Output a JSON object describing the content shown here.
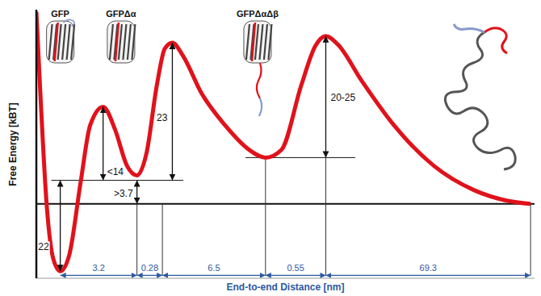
{
  "chart_data": {
    "type": "line",
    "x_label": "End-to-end Distance [nm]",
    "y_label": "Free Energy [kBT]",
    "x": [
      0,
      0.8,
      2.1,
      3.4,
      4.8,
      6.6,
      8.9,
      10.8,
      13.4,
      15.8,
      18.2,
      20.2,
      22.1,
      24.2,
      25.8,
      27.3,
      29.5,
      33.1,
      37.9,
      42.7,
      46.0,
      49.2,
      53.2,
      56.0,
      58.1,
      60.5,
      65.3,
      71.8,
      79.8,
      87.9,
      94.4,
      99.2
    ],
    "values": [
      46.5,
      26.9,
      -0.6,
      -13.3,
      -16.3,
      -12.4,
      5.3,
      19.0,
      23.5,
      18.0,
      9.2,
      6.9,
      12.2,
      28.8,
      37.6,
      39.0,
      35.7,
      26.9,
      19.0,
      13.1,
      11.2,
      13.1,
      28.8,
      38.2,
      40.6,
      38.6,
      29.8,
      19.0,
      9.2,
      3.3,
      0.8,
      0
    ],
    "color": "#e0121b",
    "xlim": [
      0,
      100
    ],
    "ylim": [
      -18,
      47
    ],
    "tick_labels": false,
    "baseline": 0,
    "states": [
      {
        "label": "GFP",
        "x": 4.8
      },
      {
        "label": "GFPΔα",
        "x": 17
      },
      {
        "label": "GFPΔαΔβ",
        "x": 44.4
      }
    ],
    "energy_barriers": [
      {
        "label": "22",
        "x": 4.8,
        "from": -16.3,
        "to": 5.7
      },
      {
        "label": "<14",
        "x": 13.4,
        "from": 5.7,
        "to": 23.5
      },
      {
        "label": ">3.7",
        "x": 20.2,
        "from": 0,
        "to": 5.7
      },
      {
        "label": "23",
        "x": 27.3,
        "from": 5.7,
        "to": 39.0
      },
      {
        "label": "20-25",
        "x": 58.1,
        "from": 11.2,
        "to": 40.6
      }
    ],
    "levels": [
      {
        "y": 5.7,
        "from": 3,
        "to": 29.5
      },
      {
        "y": 11.2,
        "from": 42,
        "to": 64
      }
    ],
    "distance_y": -17.3,
    "distances": [
      {
        "label": "3.2",
        "from": 4.8,
        "to": 20.2
      },
      {
        "label": "0.28",
        "from": 20.2,
        "to": 25.3
      },
      {
        "label": "6.5",
        "from": 25.3,
        "to": 46.0
      },
      {
        "label": "0.55",
        "from": 46.0,
        "to": 58.1
      },
      {
        "label": "69.3",
        "from": 58.1,
        "to": 99.2
      }
    ],
    "guides": [
      {
        "x": 20.2,
        "to": 0
      },
      {
        "x": 25.3,
        "to": 0
      },
      {
        "x": 46.0,
        "to": 11.2
      },
      {
        "x": 58.1,
        "to": 11.2
      },
      {
        "x": 99.2,
        "to": 0
      }
    ]
  }
}
